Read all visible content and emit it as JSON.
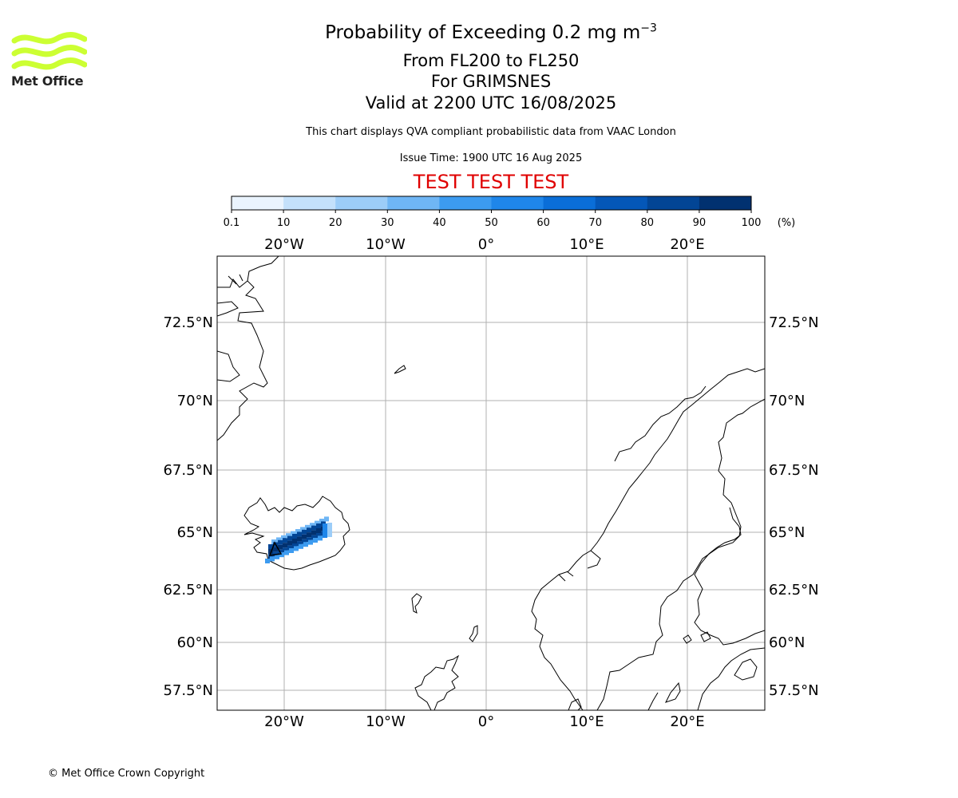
{
  "logo": {
    "text": "Met Office",
    "color": "#ccff33"
  },
  "title": {
    "line1_prefix": "Probability of Exceeding 0.2 mg m",
    "line1_sup": "−3",
    "line2": "From FL200 to FL250",
    "line3": "For GRIMSNES",
    "line4": "Valid at 2200 UTC 16/08/2025"
  },
  "subtitle": "This chart displays QVA compliant probabilistic data from VAAC London",
  "issue_time": "Issue Time: 1900 UTC 16 Aug 2025",
  "test_banner": {
    "text": "TEST TEST TEST",
    "color": "#e00000"
  },
  "colorbar": {
    "ticks": [
      "0.1",
      "10",
      "20",
      "30",
      "40",
      "50",
      "60",
      "70",
      "80",
      "90",
      "100"
    ],
    "unit": "(%)",
    "colors": [
      "#eaf4fe",
      "#c4e1fb",
      "#9ccdf8",
      "#6fb6f5",
      "#3c9bf0",
      "#1f86ea",
      "#0a6ed8",
      "#0457b8",
      "#024595",
      "#013170"
    ]
  },
  "map": {
    "lon_labels": [
      "20°W",
      "10°W",
      "0°",
      "10°E",
      "20°E"
    ],
    "lat_labels": [
      "72.5°N",
      "70°N",
      "67.5°N",
      "65°N",
      "62.5°N",
      "60°N",
      "57.5°N"
    ],
    "grid_color": "#b0b0b0",
    "plume_probability_max": 100
  },
  "copyright": "© Met Office Crown Copyright"
}
